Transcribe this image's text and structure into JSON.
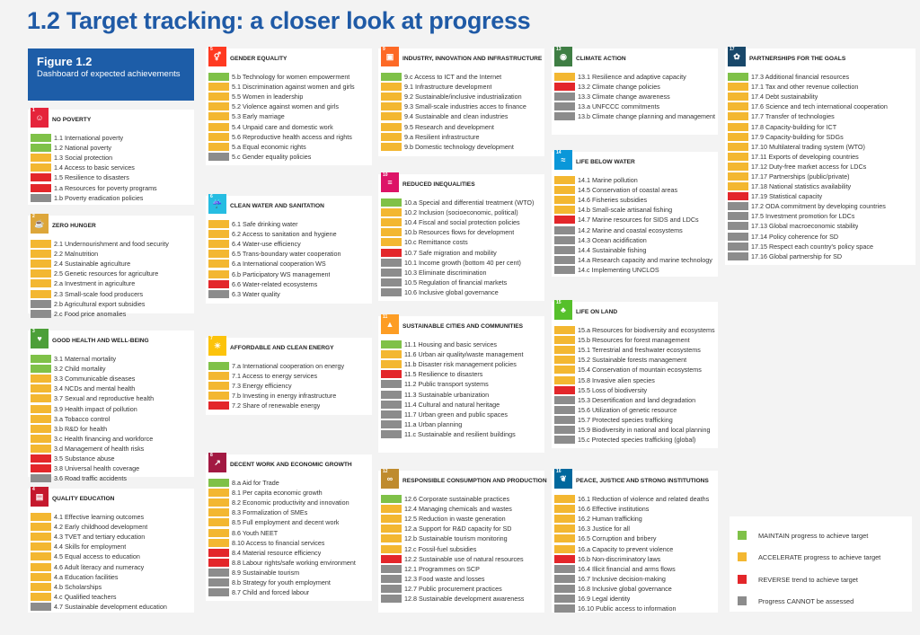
{
  "title": "1.2 Target tracking: a closer look at progress",
  "figure": {
    "label": "Figure 1.2",
    "subtitle": "Dashboard of expected achievements"
  },
  "colors": {
    "maintain": "#7fc148",
    "accelerate": "#f3b731",
    "reverse": "#e3262a",
    "cannot": "#8c8c8c"
  },
  "legend": [
    {
      "status": "g",
      "text": "MAINTAIN progress to achieve target"
    },
    {
      "status": "a",
      "text": "ACCELERATE progress to achieve target"
    },
    {
      "status": "r",
      "text": "REVERSE trend to achieve target"
    },
    {
      "status": "n",
      "text": "Progress CANNOT be assessed"
    }
  ],
  "goals": [
    {
      "num": "1",
      "color": "#e5243b",
      "icon": "people-icon",
      "title": "NO POVERTY",
      "items": [
        [
          "g",
          "1.1 International poverty"
        ],
        [
          "g",
          "1.2 National poverty"
        ],
        [
          "a",
          "1.3 Social protection"
        ],
        [
          "a",
          "1.4 Access to basic services"
        ],
        [
          "r",
          "1.5 Resilience to disasters"
        ],
        [
          "r",
          "1.a Resources for poverty programs"
        ],
        [
          "n",
          "1.b Poverty eradication policies"
        ]
      ]
    },
    {
      "num": "2",
      "color": "#dda63a",
      "icon": "bowl-icon",
      "title": "ZERO HUNGER",
      "items": [
        [
          "a",
          "2.1 Undernourishment and food security"
        ],
        [
          "a",
          "2.2 Malnutrition"
        ],
        [
          "a",
          "2.4 Sustainable agriculture"
        ],
        [
          "a",
          "2.5 Genetic resources for agriculture"
        ],
        [
          "a",
          "2.a Investment in agriculture"
        ],
        [
          "a",
          "2.3 Small-scale food producers"
        ],
        [
          "n",
          "2.b Agricultural export subsidies"
        ],
        [
          "n",
          "2.c Food price anomalies"
        ]
      ]
    },
    {
      "num": "3",
      "color": "#4c9f38",
      "icon": "heartbeat-icon",
      "title": "GOOD HEALTH AND WELL-BEING",
      "items": [
        [
          "g",
          "3.1 Maternal mortality"
        ],
        [
          "g",
          "3.2 Child mortality"
        ],
        [
          "a",
          "3.3 Communicable diseases"
        ],
        [
          "a",
          "3.4 NCDs and mental health"
        ],
        [
          "a",
          "3.7 Sexual and reproductive health"
        ],
        [
          "a",
          "3.9 Health impact of pollution"
        ],
        [
          "a",
          "3.a Tobacco control"
        ],
        [
          "a",
          "3.b R&D for health"
        ],
        [
          "a",
          "3.c Health financing and workforce"
        ],
        [
          "a",
          "3.d Management of health risks"
        ],
        [
          "r",
          "3.5 Substance abuse"
        ],
        [
          "r",
          "3.8 Universal health coverage"
        ],
        [
          "n",
          "3.6 Road traffic accidents"
        ]
      ]
    },
    {
      "num": "4",
      "color": "#c5192d",
      "icon": "book-icon",
      "title": "QUALITY EDUCATION",
      "items": [
        [
          "a",
          "4.1 Effective learning outcomes"
        ],
        [
          "a",
          "4.2 Early childhood development"
        ],
        [
          "a",
          "4.3 TVET and tertiary education"
        ],
        [
          "a",
          "4.4 Skills for employment"
        ],
        [
          "a",
          "4.5 Equal access to education"
        ],
        [
          "a",
          "4.6 Adult literacy and numeracy"
        ],
        [
          "a",
          "4.a Education facilities"
        ],
        [
          "a",
          "4.b Scholarships"
        ],
        [
          "a",
          "4.c Qualified teachers"
        ],
        [
          "n",
          "4.7 Sustainable development education"
        ]
      ]
    },
    {
      "num": "5",
      "color": "#ff3a21",
      "icon": "gender-icon",
      "title": "GENDER EQUALITY",
      "items": [
        [
          "g",
          "5.b Technology for women empowerment"
        ],
        [
          "a",
          "5.1 Discrimination against women and girls"
        ],
        [
          "a",
          "5.5 Women in leadership"
        ],
        [
          "a",
          "5.2 Violence against women and girls"
        ],
        [
          "a",
          "5.3 Early marriage"
        ],
        [
          "a",
          "5.4 Unpaid care and domestic work"
        ],
        [
          "a",
          "5.6 Reproductive health access and rights"
        ],
        [
          "a",
          "5.a Equal economic rights"
        ],
        [
          "n",
          "5.c Gender equality policies"
        ]
      ]
    },
    {
      "num": "6",
      "color": "#26bde2",
      "icon": "water-icon",
      "title": "CLEAN WATER AND SANITATION",
      "items": [
        [
          "a",
          "6.1 Safe drinking water"
        ],
        [
          "a",
          "6.2 Access to sanitation and hygiene"
        ],
        [
          "a",
          "6.4 Water-use efficiency"
        ],
        [
          "a",
          "6.5 Trans-boundary water cooperation"
        ],
        [
          "a",
          "6.a International cooperation WS"
        ],
        [
          "a",
          "6.b Participatory WS management"
        ],
        [
          "r",
          "6.6 Water-related ecosystems"
        ],
        [
          "n",
          "6.3 Water quality"
        ]
      ]
    },
    {
      "num": "7",
      "color": "#fcc30b",
      "icon": "sun-icon",
      "title": "AFFORDABLE AND CLEAN ENERGY",
      "items": [
        [
          "g",
          "7.a International cooperation on energy"
        ],
        [
          "a",
          "7.1 Access to energy services"
        ],
        [
          "a",
          "7.3 Energy efficiency"
        ],
        [
          "a",
          "7.b Investing in energy infrastructure"
        ],
        [
          "r",
          "7.2 Share of renewable energy"
        ]
      ]
    },
    {
      "num": "8",
      "color": "#a21942",
      "icon": "chart-up-icon",
      "title": "DECENT WORK AND ECONOMIC GROWTH",
      "items": [
        [
          "g",
          "8.a Aid for Trade"
        ],
        [
          "a",
          "8.1 Per capita economic growth"
        ],
        [
          "a",
          "8.2 Economic productivity and innovation"
        ],
        [
          "a",
          "8.3 Formalization of SMEs"
        ],
        [
          "a",
          "8.5 Full employment and decent work"
        ],
        [
          "a",
          "8.6 Youth NEET"
        ],
        [
          "a",
          "8.10 Access to financial services"
        ],
        [
          "r",
          "8.4 Material resource efficiency"
        ],
        [
          "r",
          "8.8 Labour rights/safe working environment"
        ],
        [
          "n",
          "8.9 Sustainable tourism"
        ],
        [
          "n",
          "8.b Strategy for youth employment"
        ],
        [
          "n",
          "8.7 Child and forced labour"
        ]
      ]
    },
    {
      "num": "9",
      "color": "#fd6925",
      "icon": "cubes-icon",
      "title": "INDUSTRY, INNOVATION AND INFRASTRUCTURE",
      "items": [
        [
          "g",
          "9.c Access to ICT and the Internet"
        ],
        [
          "a",
          "9.1 Infrastructure development"
        ],
        [
          "a",
          "9.2 Sustainable/inclusive industrialization"
        ],
        [
          "a",
          "9.3 Small-scale industries acces to finance"
        ],
        [
          "a",
          "9.4 Sustainable and clean industries"
        ],
        [
          "a",
          "9.5 Research and development"
        ],
        [
          "a",
          "9.a Resilient infrastructure"
        ],
        [
          "a",
          "9.b Domestic technology development"
        ]
      ]
    },
    {
      "num": "10",
      "color": "#dd1367",
      "icon": "equal-icon",
      "title": "REDUCED INEQUALITIES",
      "items": [
        [
          "g",
          "10.a Special and differential treatment (WTO)"
        ],
        [
          "a",
          "10.2 Inclusion (socioeconomic, political)"
        ],
        [
          "a",
          "10.4 Fiscal and social protection policies"
        ],
        [
          "a",
          "10.b Resources flows for development"
        ],
        [
          "a",
          "10.c Remittance costs"
        ],
        [
          "r",
          "10.7 Safe migration and mobility"
        ],
        [
          "n",
          "10.1 Income growth (bottom 40 per cent)"
        ],
        [
          "n",
          "10.3 Eliminate discrimination"
        ],
        [
          "n",
          "10.5 Regulation of financial markets"
        ],
        [
          "n",
          "10.6 Inclusive global governance"
        ]
      ]
    },
    {
      "num": "11",
      "color": "#fd9d24",
      "icon": "city-icon",
      "title": "SUSTAINABLE CITIES AND COMMUNITIES",
      "items": [
        [
          "g",
          "11.1 Housing and basic services"
        ],
        [
          "a",
          "11.6 Urban air quality/waste management"
        ],
        [
          "a",
          "11.b Disaster risk management policies"
        ],
        [
          "r",
          "11.5 Resilience to disasters"
        ],
        [
          "n",
          "11.2 Public transport systems"
        ],
        [
          "n",
          "11.3 Sustainable urbanization"
        ],
        [
          "n",
          "11.4 Cultural and natural heritage"
        ],
        [
          "n",
          "11.7 Urban green and public spaces"
        ],
        [
          "n",
          "11.a Urban planning"
        ],
        [
          "n",
          "11.c Sustainable and resilient buildings"
        ]
      ]
    },
    {
      "num": "12",
      "color": "#bf8b2e",
      "icon": "infinity-icon",
      "title": "RESPONSIBLE CONSUMPTION AND PRODUCTION",
      "items": [
        [
          "g",
          "12.6 Corporate sustainable practices"
        ],
        [
          "a",
          "12.4 Managing chemicals and wastes"
        ],
        [
          "a",
          "12.5 Reduction in waste generation"
        ],
        [
          "a",
          "12.a Support for R&D capacity for SD"
        ],
        [
          "a",
          "12.b Sustainable tourism monitoring"
        ],
        [
          "a",
          "12.c Fossil-fuel subsidies"
        ],
        [
          "r",
          "12.2 Sustainable use of natural resources"
        ],
        [
          "n",
          "12.1 Programmes on SCP"
        ],
        [
          "n",
          "12.3 Food waste and losses"
        ],
        [
          "n",
          "12.7 Public procurement practices"
        ],
        [
          "n",
          "12.8 Sustainable development awareness"
        ]
      ]
    },
    {
      "num": "13",
      "color": "#3f7e44",
      "icon": "eye-icon",
      "title": "CLIMATE ACTION",
      "items": [
        [
          "a",
          "13.1 Resilience and adaptive capacity"
        ],
        [
          "r",
          "13.2 Climate change policies"
        ],
        [
          "n",
          "13.3 Climate change awareness"
        ],
        [
          "n",
          "13.a UNFCCC commitments"
        ],
        [
          "n",
          "13.b Climate change planning and management"
        ]
      ]
    },
    {
      "num": "14",
      "color": "#0a97d9",
      "icon": "fish-icon",
      "title": "LIFE BELOW WATER",
      "items": [
        [
          "a",
          "14.1 Marine pollution"
        ],
        [
          "a",
          "14.5 Conservation of coastal areas"
        ],
        [
          "a",
          "14.6 Fisheries subsidies"
        ],
        [
          "a",
          "14.b Small-scale artisanal fishing"
        ],
        [
          "r",
          "14.7 Marine resources for SIDS and LDCs"
        ],
        [
          "n",
          "14.2 Marine and coastal ecosystems"
        ],
        [
          "n",
          "14.3 Ocean acidification"
        ],
        [
          "n",
          "14.4 Sustainable fishing"
        ],
        [
          "n",
          "14.a Research capacity and marine technology"
        ],
        [
          "n",
          "14.c Implementing UNCLOS"
        ]
      ]
    },
    {
      "num": "15",
      "color": "#56c02b",
      "icon": "tree-icon",
      "title": "LIFE ON LAND",
      "items": [
        [
          "a",
          "15.a Resources for biodiversity and ecosystems"
        ],
        [
          "a",
          "15.b Resources for forest management"
        ],
        [
          "a",
          "15.1 Terrestrial and freshwater ecosystems"
        ],
        [
          "a",
          "15.2 Sustainable forests management"
        ],
        [
          "a",
          "15.4 Conservation of mountain ecosystems"
        ],
        [
          "a",
          "15.8 Invasive alien species"
        ],
        [
          "r",
          "15.5 Loss of biodiversity"
        ],
        [
          "n",
          "15.3 Desertification and land degradation"
        ],
        [
          "n",
          "15.6 Utilization of genetic resource"
        ],
        [
          "n",
          "15.7 Protected species trafficking"
        ],
        [
          "n",
          "15.9 Biodiversity in national and local planning"
        ],
        [
          "n",
          "15.c Protected species trafficking (global)"
        ]
      ]
    },
    {
      "num": "16",
      "color": "#00689d",
      "icon": "dove-icon",
      "title": "PEACE, JUSTICE AND STRONG INSTITUTIONS",
      "items": [
        [
          "a",
          "16.1 Reduction of violence and related deaths"
        ],
        [
          "a",
          "16.6 Effective institutions"
        ],
        [
          "a",
          "16.2 Human trafficking"
        ],
        [
          "a",
          "16.3 Justice for all"
        ],
        [
          "a",
          "16.5 Corruption and bribery"
        ],
        [
          "a",
          "16.a Capacity to prevent violence"
        ],
        [
          "r",
          "16.b Non-discriminatory laws"
        ],
        [
          "n",
          "16.4 Illicit financial and arms flows"
        ],
        [
          "n",
          "16.7 Inclusive decision-making"
        ],
        [
          "n",
          "16.8 Inclusive global governance"
        ],
        [
          "n",
          "16.9 Legal identity"
        ],
        [
          "n",
          "16.10 Public access to information"
        ]
      ]
    },
    {
      "num": "17",
      "color": "#19486a",
      "icon": "flower-icon",
      "title": "PARTNERSHIPS FOR THE GOALS",
      "items": [
        [
          "g",
          "17.3 Additional financial resources"
        ],
        [
          "a",
          "17.1 Tax and other revenue collection"
        ],
        [
          "a",
          "17.4 Debt sustainability"
        ],
        [
          "a",
          "17.6 Science and tech international cooperation"
        ],
        [
          "a",
          "17.7 Transfer of technologies"
        ],
        [
          "a",
          "17.8 Capacity-building for ICT"
        ],
        [
          "a",
          "17.9 Capacity-building for SDGs"
        ],
        [
          "a",
          "17.10 Multilateral trading system (WTO)"
        ],
        [
          "a",
          "17.11 Exports of developing countries"
        ],
        [
          "a",
          "17.12 Duty-free market access for LDCs"
        ],
        [
          "a",
          "17.17 Partnerships (public/private)"
        ],
        [
          "a",
          "17.18 National statistics availability"
        ],
        [
          "r",
          "17.19 Statistical capacity"
        ],
        [
          "n",
          "17.2 ODA commitment by developing countries"
        ],
        [
          "n",
          "17.5 Investment promotion for LDCs"
        ],
        [
          "n",
          "17.13 Global macroeconomic stability"
        ],
        [
          "n",
          "17.14 Policy coherence for SD"
        ],
        [
          "n",
          "17.15 Respect each country's policy space"
        ],
        [
          "n",
          "17.16 Global partnership for SD"
        ]
      ]
    }
  ]
}
